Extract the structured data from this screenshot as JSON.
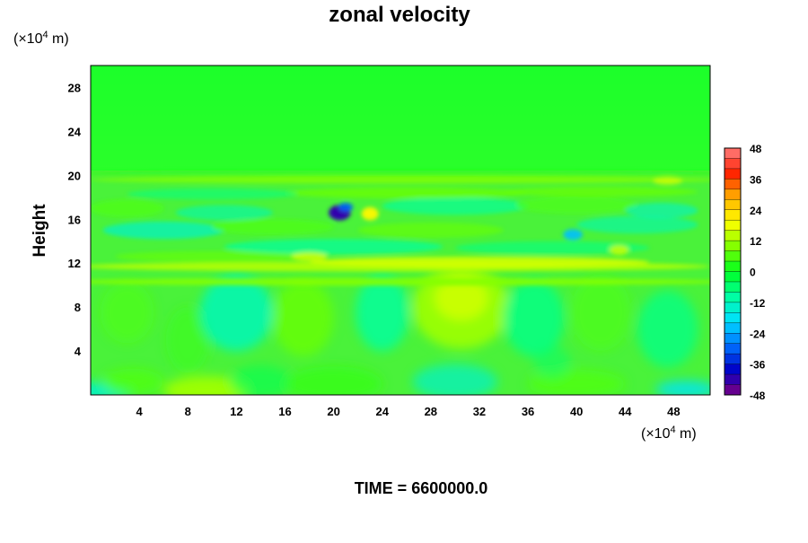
{
  "chart_data": {
    "type": "heatmap",
    "title": "zonal velocity",
    "ylabel": "Height",
    "xlabel": "",
    "x_unit_prefix": "(×10",
    "x_unit_exp": "4",
    "x_unit_suffix": " m)",
    "y_unit_prefix": "(×10",
    "y_unit_exp": "4",
    "y_unit_suffix": " m)",
    "xlim": [
      0,
      51
    ],
    "ylim": [
      0,
      30
    ],
    "x_ticks": [
      4,
      8,
      12,
      16,
      20,
      24,
      28,
      32,
      36,
      40,
      44,
      48
    ],
    "y_ticks": [
      4,
      8,
      12,
      16,
      20,
      24,
      28
    ],
    "colorbar": {
      "min": -48,
      "max": 48,
      "step": 4,
      "ticks": [
        48,
        36,
        24,
        12,
        0,
        -12,
        -24,
        -36,
        -48
      ]
    },
    "colormap": [
      "#800080",
      "#0000c8",
      "#0070ff",
      "#00e0ff",
      "#00ffa0",
      "#00ff20",
      "#80ff00",
      "#ffff00",
      "#ffb000",
      "#ff2000",
      "#ff8080"
    ],
    "field_description_samples": [
      {
        "x": 9.5,
        "y": 0.3,
        "value": 12
      },
      {
        "x": 30.5,
        "y": 8,
        "value": 14
      },
      {
        "x": 20.5,
        "y": 16.5,
        "value": -42
      },
      {
        "x": 22.5,
        "y": 16.5,
        "value": 18
      },
      {
        "x": 39.5,
        "y": 14.5,
        "value": -22
      },
      {
        "x": 12,
        "y": 7.5,
        "value": -12
      },
      {
        "x": 36,
        "y": 7,
        "value": -10
      },
      {
        "x": 10,
        "y": 25,
        "value": 0
      }
    ]
  },
  "footer": {
    "time_label": "TIME = 6600000.0"
  }
}
